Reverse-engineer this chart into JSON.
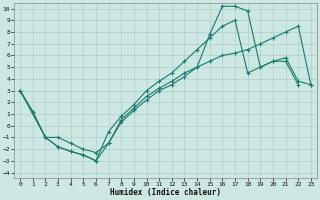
{
  "xlabel": "Humidex (Indice chaleur)",
  "background_color": "#cde8e2",
  "grid_color": "#aecfc8",
  "line_color": "#1a7a6e",
  "xlim": [
    -0.5,
    23.5
  ],
  "ylim": [
    -4.5,
    10.5
  ],
  "xticks": [
    0,
    1,
    2,
    3,
    4,
    5,
    6,
    7,
    8,
    9,
    10,
    11,
    12,
    13,
    14,
    15,
    16,
    17,
    18,
    19,
    20,
    21,
    22,
    23
  ],
  "yticks": [
    -4,
    -3,
    -2,
    -1,
    0,
    1,
    2,
    3,
    4,
    5,
    6,
    7,
    8,
    9,
    10
  ],
  "line1_x": [
    0,
    1,
    2,
    3,
    4,
    5,
    6,
    7,
    8,
    9,
    10,
    11,
    12,
    13,
    14,
    15,
    16,
    17,
    18,
    19,
    20,
    21,
    22,
    23
  ],
  "line1_y": [
    3.0,
    1.2,
    -1.0,
    -1.8,
    -2.2,
    -2.5,
    -3.0,
    -1.5,
    0.3,
    1.3,
    2.2,
    3.0,
    3.5,
    4.2,
    5.0,
    7.8,
    10.2,
    10.2,
    9.8,
    5.0,
    5.5,
    5.5,
    3.5,
    null
  ],
  "line2_x": [
    0,
    1,
    2,
    3,
    4,
    5,
    6,
    7,
    8,
    9,
    10,
    11,
    12,
    13,
    14,
    15,
    16,
    17,
    18,
    19,
    20,
    21,
    22,
    23
  ],
  "line2_y": [
    3.0,
    1.2,
    -1.0,
    -1.8,
    -2.2,
    -2.5,
    -3.0,
    -0.5,
    0.8,
    1.8,
    3.0,
    3.8,
    4.5,
    5.5,
    6.5,
    7.5,
    8.5,
    9.0,
    4.5,
    5.0,
    5.5,
    5.8,
    3.8,
    3.5
  ],
  "line3_x": [
    0,
    2,
    3,
    4,
    5,
    6,
    7,
    8,
    9,
    10,
    11,
    12,
    13,
    14,
    15,
    16,
    17,
    18,
    19,
    20,
    21,
    22,
    23
  ],
  "line3_y": [
    3.0,
    -1.0,
    -1.0,
    -1.5,
    -2.0,
    -2.3,
    -1.5,
    0.5,
    1.5,
    2.5,
    3.2,
    3.8,
    4.5,
    5.0,
    5.5,
    6.0,
    6.2,
    6.5,
    7.0,
    7.5,
    8.0,
    8.5,
    3.5
  ]
}
